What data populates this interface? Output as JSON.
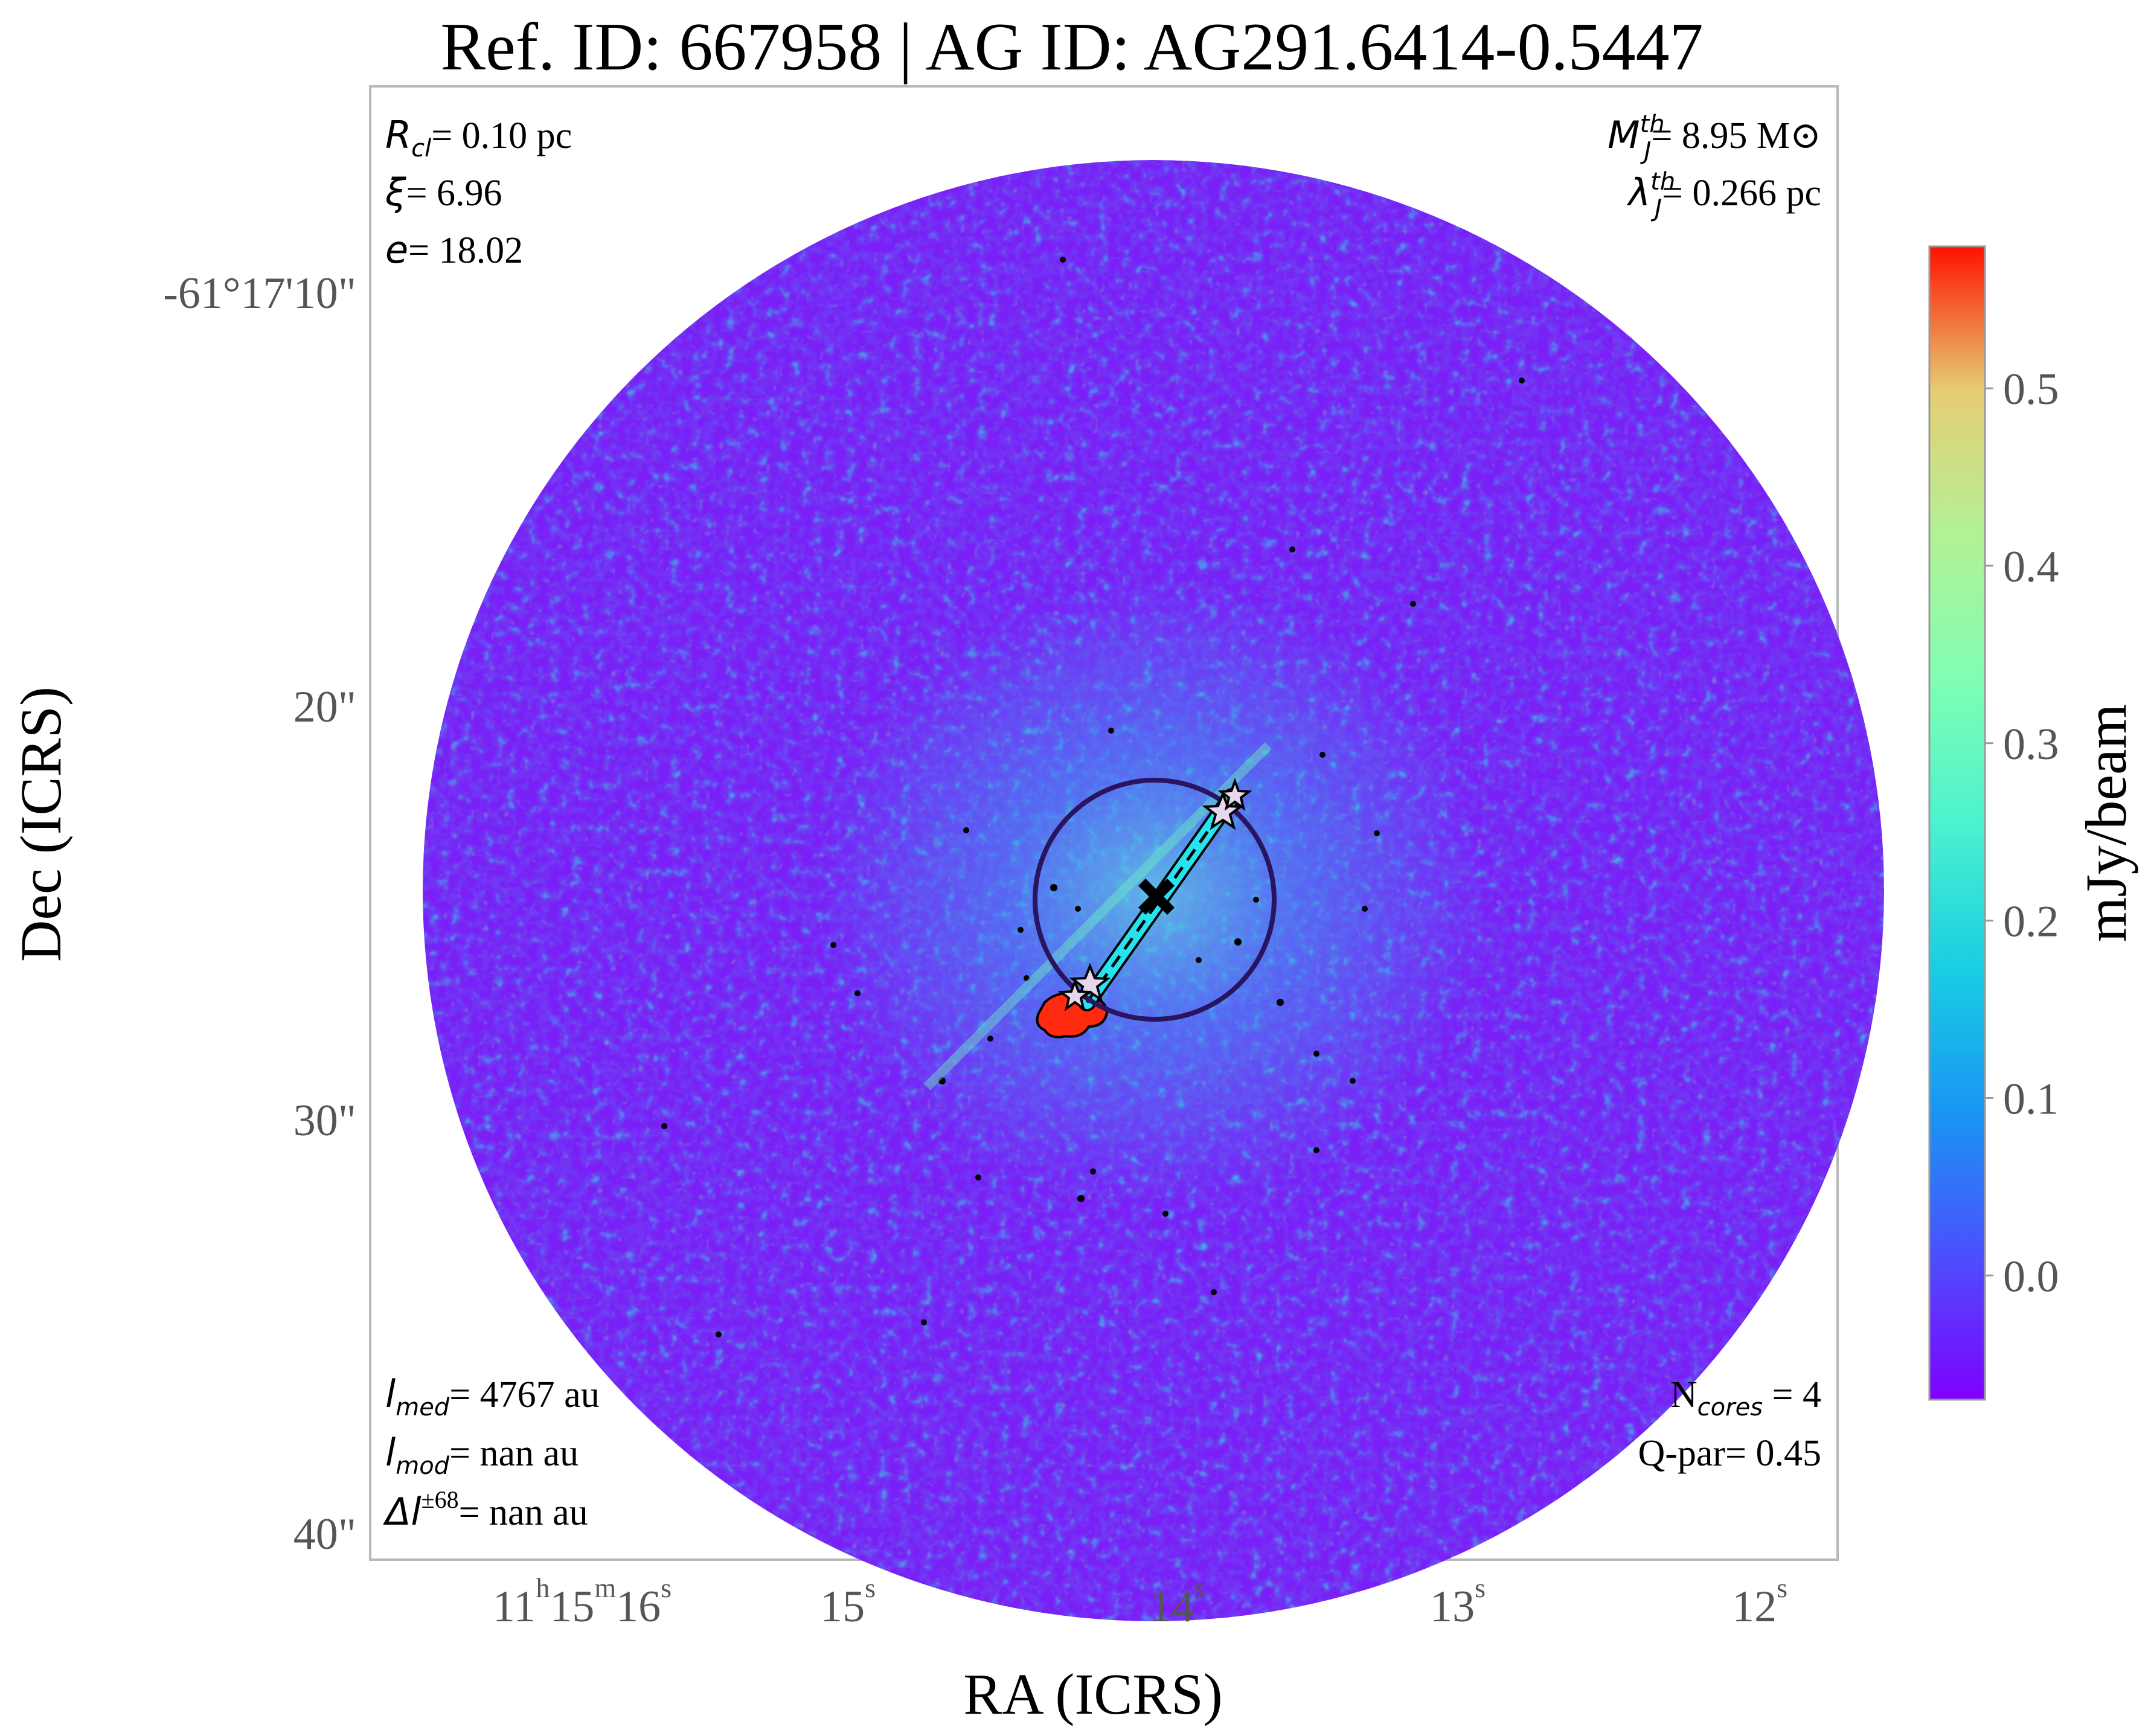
{
  "title": "Ref. ID: 667958 | AG ID: AG291.6414-0.5447",
  "axes": {
    "xlabel": "RA (ICRS)",
    "ylabel": "Dec (ICRS)",
    "x_ticks": [
      {
        "hours": "11",
        "minutes": "15",
        "seconds": "16"
      },
      {
        "seconds": "15"
      },
      {
        "seconds": "14"
      },
      {
        "seconds": "13"
      },
      {
        "seconds": "12"
      }
    ],
    "y_ticks": [
      "-61°17'10\"",
      "20\"",
      "30\"",
      "40\""
    ]
  },
  "annotations": {
    "top_left": [
      {
        "symbol": "R",
        "sub": "cl",
        "text": "= 0.10 pc"
      },
      {
        "symbol": "ξ",
        "text": "= 6.96"
      },
      {
        "symbol": "e",
        "text": "= 18.02"
      }
    ],
    "top_right": [
      {
        "symbol": "M",
        "sub": "J",
        "sup": "th",
        "text": "= 8.95 M⊙"
      },
      {
        "symbol": "λ",
        "sub": "J",
        "sup": "th",
        "text": "= 0.266 pc"
      }
    ],
    "bottom_left": [
      {
        "symbol": "l",
        "sub": "med",
        "text": "= 4767 au"
      },
      {
        "symbol": "l",
        "sub": "mod",
        "text": "= nan au"
      },
      {
        "symbol": "Δl",
        "sup": "±68",
        "text": "= nan au"
      }
    ],
    "bottom_right": [
      {
        "prefix": "N",
        "sub": "cores",
        "text": " = 4"
      },
      {
        "text": "Q-par= 0.45"
      }
    ]
  },
  "colorbar": {
    "label": "mJy/beam",
    "min": -0.07,
    "max": 0.58,
    "ticks": [
      0.0,
      0.1,
      0.2,
      0.3,
      0.4,
      0.5
    ],
    "tick_labels": [
      "0.0",
      "0.1",
      "0.2",
      "0.3",
      "0.4",
      "0.5"
    ],
    "colormap": "rainbow"
  },
  "colors": {
    "background_map": "#7a1ff6",
    "filament_line": "#000000",
    "filament_fill": "#00e5ff",
    "circle": "#2a1460",
    "center_marker": "#000000",
    "star_marker": "#e6d8ea",
    "clump": "#ff2a10"
  },
  "cores_shown": 4
}
